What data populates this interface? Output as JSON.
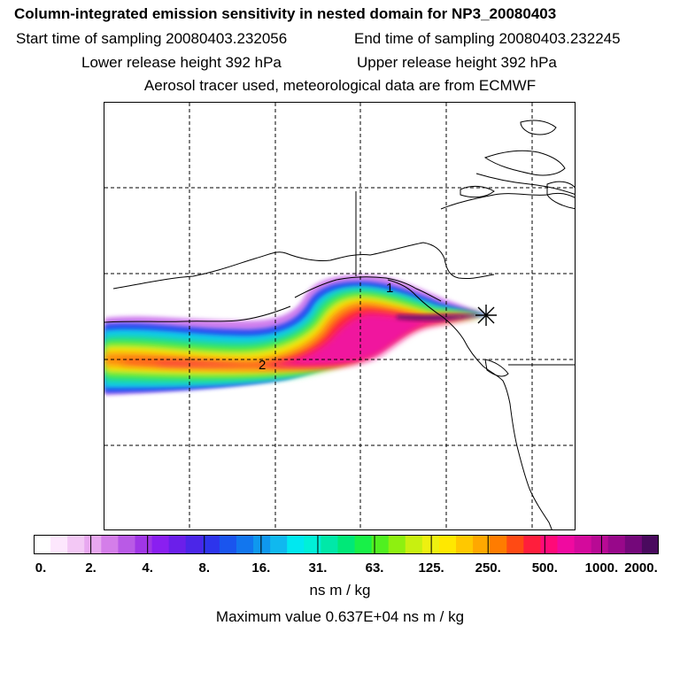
{
  "header": {
    "title": "Column-integrated emission sensitivity in nested domain for NP3_20080403",
    "start_sampling": "Start time of sampling 20080403.232056",
    "end_sampling": "End time of sampling 20080403.232245",
    "lower_release": "Lower release height  392 hPa",
    "upper_release": "Upper release height  392 hPa",
    "tracer_info": "Aerosol tracer used, meteorological data are from ECMWF"
  },
  "map": {
    "labels": [
      {
        "text": "1",
        "lon": -135.5,
        "lat": 58.8
      },
      {
        "text": "2",
        "lon": -160.0,
        "lat": 52.5
      }
    ],
    "release_marker": "star-icon",
    "colors": {
      "land_outline": "#000000",
      "grid": "#000000"
    }
  },
  "legend": {
    "tick_labels": [
      "0.",
      "2.",
      "4.",
      "8.",
      "16.",
      "31.",
      "63.",
      "125.",
      "250.",
      "500.",
      "1000.",
      "2000."
    ],
    "colors": [
      "#ffffff",
      "#fde7fd",
      "#f3c8f5",
      "#e8a8f0",
      "#d47ee9",
      "#b95ae6",
      "#a036e6",
      "#8a1ff0",
      "#6b1fea",
      "#4b26e8",
      "#2d34ec",
      "#1a55ee",
      "#1276ee",
      "#0f98ee",
      "#10b8ef",
      "#00e8f0",
      "#00f0d8",
      "#00e8a8",
      "#00e878",
      "#18f048",
      "#50f020",
      "#8ef010",
      "#c8f010",
      "#eef010",
      "#ffe800",
      "#ffc800",
      "#ffa800",
      "#ff7c00",
      "#ff4a14",
      "#ff1e3c",
      "#ff0a78",
      "#f00aa0",
      "#d40a9c",
      "#b80a94",
      "#98088a",
      "#74087a",
      "#4a0a5e"
    ],
    "units": "ns m / kg",
    "max_value": "Maximum value  0.637E+04 ns m / kg"
  }
}
